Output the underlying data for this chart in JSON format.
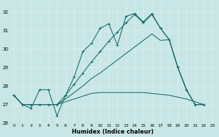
{
  "xlabel": "Humidex (Indice chaleur)",
  "xlim": [
    -0.5,
    23.5
  ],
  "ylim": [
    26,
    32.5
  ],
  "yticks": [
    26,
    27,
    28,
    29,
    30,
    31,
    32
  ],
  "xticks": [
    0,
    1,
    2,
    3,
    4,
    5,
    6,
    7,
    8,
    9,
    10,
    11,
    12,
    13,
    14,
    15,
    16,
    17,
    18,
    19,
    20,
    21,
    22,
    23
  ],
  "bg_color": "#c8e6e6",
  "grid_color": "#e0f0f0",
  "line_color": "#1a6b6b",
  "series": [
    [
      27.5,
      27.0,
      26.8,
      27.8,
      27.8,
      26.4,
      27.5,
      28.5,
      29.85,
      30.3,
      31.1,
      31.35,
      30.2,
      31.75,
      31.9,
      31.45,
      31.9,
      31.1,
      30.5,
      29.0,
      27.8,
      27.0,
      27.0,
      null
    ],
    [
      27.5,
      27.0,
      27.0,
      27.0,
      27.0,
      27.0,
      27.3,
      27.65,
      28.0,
      28.4,
      28.7,
      29.05,
      29.4,
      29.75,
      30.1,
      30.45,
      30.8,
      30.45,
      30.5,
      29.0,
      27.8,
      27.0,
      27.0,
      null
    ],
    [
      27.5,
      27.0,
      27.0,
      27.0,
      27.0,
      27.0,
      27.15,
      27.3,
      27.45,
      27.6,
      27.65,
      27.65,
      27.65,
      27.65,
      27.65,
      27.65,
      27.6,
      27.55,
      27.5,
      27.4,
      27.3,
      27.15,
      27.0,
      null
    ],
    [
      27.5,
      27.0,
      27.0,
      27.0,
      27.0,
      27.0,
      27.5,
      28.1,
      28.7,
      29.3,
      29.85,
      30.4,
      30.9,
      31.4,
      31.85,
      31.4,
      31.85,
      31.1,
      30.5,
      29.0,
      27.8,
      27.0,
      27.0,
      null
    ]
  ],
  "has_markers": [
    true,
    false,
    false,
    true
  ]
}
